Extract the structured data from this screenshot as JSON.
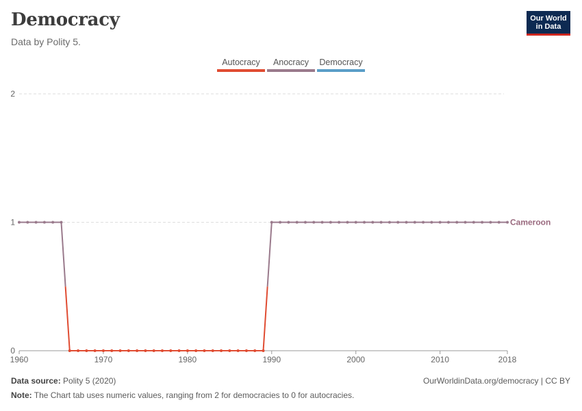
{
  "header": {
    "title": "Democracy",
    "subtitle": "Data by Polity 5."
  },
  "logo": {
    "line1": "Our World",
    "line2": "in Data"
  },
  "footer": {
    "source_label": "Data source:",
    "source_text": " Polity 5 (2020)",
    "note_label": "Note:",
    "note_text": " The Chart tab uses numeric values, ranging from 2 for democracies to 0 for autocracies.",
    "link": "OurWorldinData.org/democracy | CC BY"
  },
  "chart_data": {
    "type": "line",
    "title": "Democracy",
    "subtitle": "Data by Polity 5.",
    "xlim": [
      1960,
      2018
    ],
    "ylim": [
      0,
      2
    ],
    "x_ticks": [
      1960,
      1970,
      1980,
      1990,
      2000,
      2010,
      2018
    ],
    "y_ticks": [
      0,
      1,
      2
    ],
    "grid": "horizontal dashed",
    "legend_position": "top-center",
    "legend": [
      {
        "label": "Autocracy",
        "color": "#e04c32"
      },
      {
        "label": "Anocracy",
        "color": "#9a7a8c"
      },
      {
        "label": "Democracy",
        "color": "#5a9ec8"
      }
    ],
    "series": [
      {
        "name": "Cameroon",
        "color_autocracy": "#e04c32",
        "color_anocracy": "#9a7a8c",
        "x": [
          1960,
          1961,
          1962,
          1963,
          1964,
          1965,
          1966,
          1967,
          1968,
          1969,
          1970,
          1971,
          1972,
          1973,
          1974,
          1975,
          1976,
          1977,
          1978,
          1979,
          1980,
          1981,
          1982,
          1983,
          1984,
          1985,
          1986,
          1987,
          1988,
          1989,
          1990,
          1991,
          1992,
          1993,
          1994,
          1995,
          1996,
          1997,
          1998,
          1999,
          2000,
          2001,
          2002,
          2003,
          2004,
          2005,
          2006,
          2007,
          2008,
          2009,
          2010,
          2011,
          2012,
          2013,
          2014,
          2015,
          2016,
          2017,
          2018
        ],
        "y": [
          1,
          1,
          1,
          1,
          1,
          1,
          0,
          0,
          0,
          0,
          0,
          0,
          0,
          0,
          0,
          0,
          0,
          0,
          0,
          0,
          0,
          0,
          0,
          0,
          0,
          0,
          0,
          0,
          0,
          0,
          1,
          1,
          1,
          1,
          1,
          1,
          1,
          1,
          1,
          1,
          1,
          1,
          1,
          1,
          1,
          1,
          1,
          1,
          1,
          1,
          1,
          1,
          1,
          1,
          1,
          1,
          1,
          1,
          1
        ]
      }
    ]
  }
}
